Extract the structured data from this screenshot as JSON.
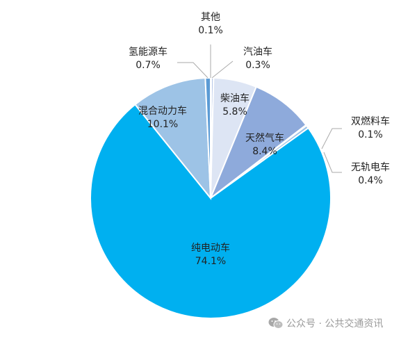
{
  "chart_data": {
    "type": "pie",
    "title": "",
    "start_angle_deg": 0,
    "direction": "clockwise",
    "slices": [
      {
        "label": "其他",
        "value": 0.1,
        "display": "0.1%",
        "color": "#c8d4e8"
      },
      {
        "label": "汽油车",
        "value": 0.3,
        "display": "0.3%",
        "color": "#b4c6e7"
      },
      {
        "label": "柴油车",
        "value": 5.8,
        "display": "5.8%",
        "color": "#dde5f4"
      },
      {
        "label": "天然气车",
        "value": 8.4,
        "display": "8.4%",
        "color": "#8eaadb"
      },
      {
        "label": "双燃料车",
        "value": 0.1,
        "display": "0.1%",
        "color": "#c5d3ea"
      },
      {
        "label": "无轨电车",
        "value": 0.4,
        "display": "0.4%",
        "color": "#9dc3e6"
      },
      {
        "label": "纯电动车",
        "value": 74.1,
        "display": "74.1%",
        "color": "#00b0f0"
      },
      {
        "label": "混合动力车",
        "value": 10.1,
        "display": "10.1%",
        "color": "#9dc3e6"
      },
      {
        "label": "氢能源车",
        "value": 0.7,
        "display": "0.7%",
        "color": "#5b9bd5"
      }
    ],
    "legend": "none",
    "data_labels": "category name and percentage"
  },
  "labels": {
    "other": {
      "name": "其他",
      "pct": "0.1%"
    },
    "gasoline": {
      "name": "汽油车",
      "pct": "0.3%"
    },
    "diesel": {
      "name": "柴油车",
      "pct": "5.8%"
    },
    "cng": {
      "name": "天然气车",
      "pct": "8.4%"
    },
    "dual_fuel": {
      "name": "双燃料车",
      "pct": "0.1%"
    },
    "trolley": {
      "name": "无轨电车",
      "pct": "0.4%"
    },
    "bev": {
      "name": "纯电动车",
      "pct": "74.1%"
    },
    "hybrid": {
      "name": "混合动力车",
      "pct": "10.1%"
    },
    "hydrogen": {
      "name": "氢能源车",
      "pct": "0.7%"
    }
  },
  "watermark": {
    "text": "公众号 · 公共交通资讯",
    "icon": "wechat-icon"
  }
}
